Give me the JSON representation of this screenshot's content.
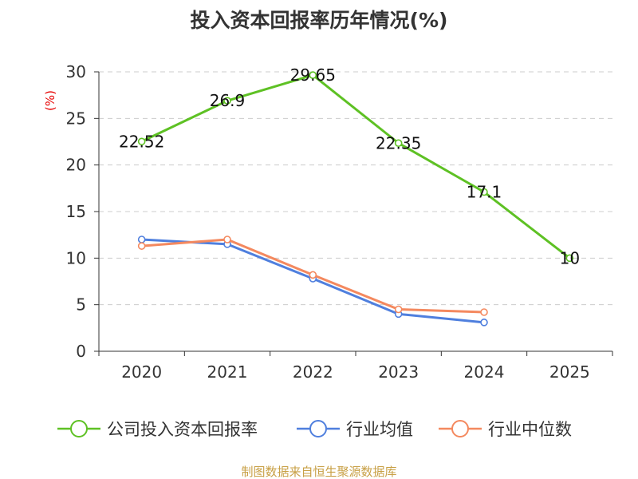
{
  "chart_data": {
    "type": "line",
    "title": "投入资本回报率历年情况(%)",
    "ylabel": "(%)",
    "xlabel": "",
    "categories": [
      "2020",
      "2021",
      "2022",
      "2023",
      "2024",
      "2025"
    ],
    "ylim": [
      0,
      30
    ],
    "yticks": [
      0,
      5,
      10,
      15,
      20,
      25,
      30
    ],
    "grid": true,
    "legend_position": "bottom",
    "series": [
      {
        "name": "公司投入资本回报率",
        "color": "#5ec124",
        "values": [
          22.52,
          26.9,
          29.65,
          22.35,
          17.1,
          10
        ],
        "labels": [
          "22.52",
          "26.9",
          "29.65",
          "22.35",
          "17.1",
          "10"
        ]
      },
      {
        "name": "行业均值",
        "color": "#4f7fde",
        "values": [
          12.0,
          11.5,
          7.8,
          4.0,
          3.1,
          null
        ]
      },
      {
        "name": "行业中位数",
        "color": "#f4895f",
        "values": [
          11.3,
          12.0,
          8.2,
          4.5,
          4.2,
          null
        ]
      }
    ],
    "source": "制图数据来自恒生聚源数据库"
  }
}
